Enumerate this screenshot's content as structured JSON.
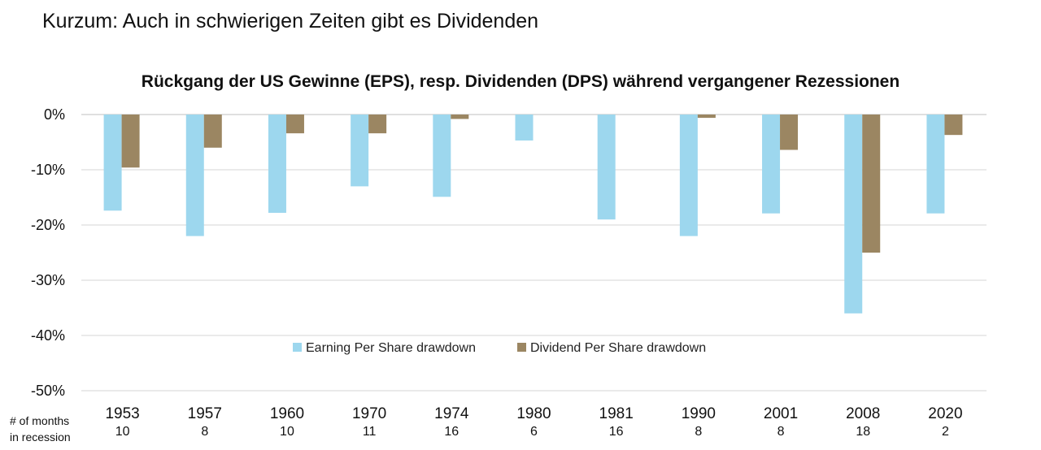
{
  "page": {
    "title": "Kurzum: Auch in schwierigen Zeiten gibt es Dividenden"
  },
  "side_labels": {
    "months_line1": "# of months",
    "months_line2": "in recession"
  },
  "chart_data": {
    "type": "bar",
    "title": "Rückgang der US Gewinne (EPS), resp. Dividenden (DPS) während vergangener Rezessionen",
    "categories": [
      "1953",
      "1957",
      "1960",
      "1970",
      "1974",
      "1980",
      "1981",
      "1990",
      "2001",
      "2008",
      "2020"
    ],
    "months_in_recession": [
      "10",
      "8",
      "10",
      "11",
      "16",
      "6",
      "16",
      "8",
      "8",
      "18",
      "2"
    ],
    "series": [
      {
        "name": "Earning Per Share  drawdown",
        "color": "#9dd7ee",
        "values": [
          -17.4,
          -22.0,
          -17.8,
          -13.0,
          -14.9,
          -4.7,
          -19.0,
          -22.0,
          -17.9,
          -36.0,
          -17.9
        ]
      },
      {
        "name": "Dividend Per Share drawdown",
        "color": "#9b8662",
        "values": [
          -9.6,
          -6.0,
          -3.4,
          -3.4,
          -0.8,
          0,
          0,
          -0.6,
          -6.4,
          -25.0,
          -3.7
        ]
      }
    ],
    "ylim": [
      -50,
      0
    ],
    "yticks": [
      0,
      -10,
      -20,
      -30,
      -40,
      -50
    ],
    "ytick_labels": [
      "0%",
      "-10%",
      "-20%",
      "-30%",
      "-40%",
      "-50%"
    ],
    "grid": true,
    "legend_position": "lower-center"
  }
}
